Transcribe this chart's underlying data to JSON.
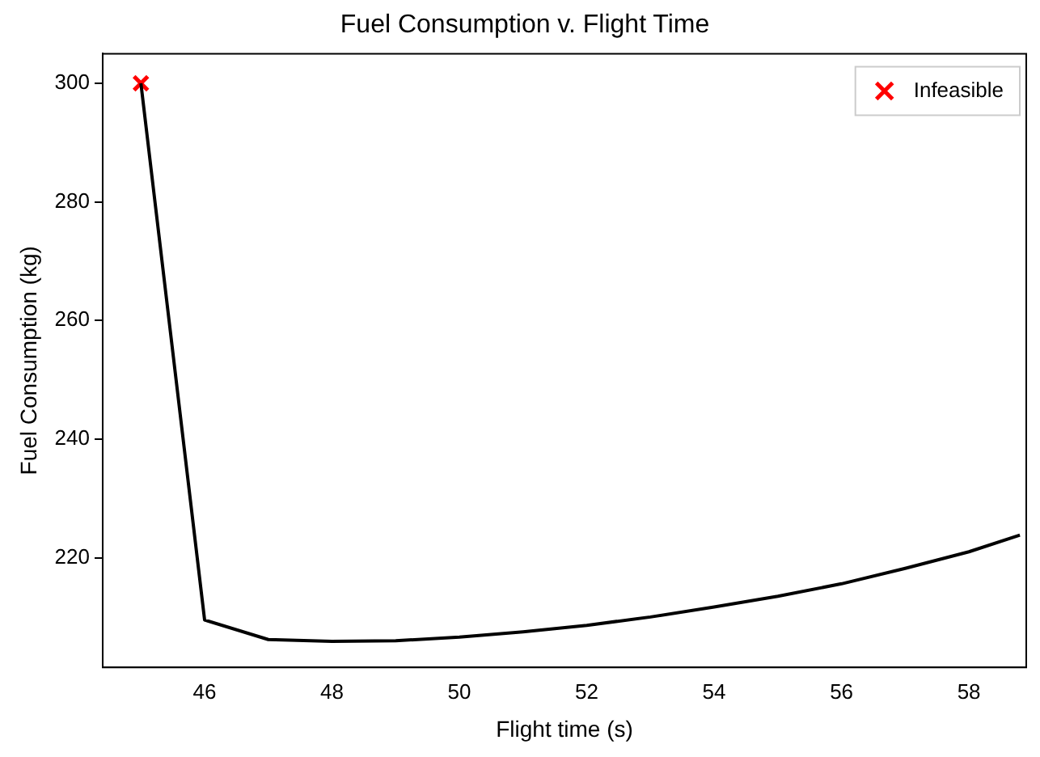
{
  "chart_data": {
    "type": "line",
    "title": "Fuel Consumption v. Flight Time",
    "xlabel": "Flight time (s)",
    "ylabel": "Fuel Consumption (kg)",
    "series": [
      {
        "color": "#000000",
        "x": [
          45,
          46,
          47,
          48,
          49,
          50,
          51,
          52,
          53,
          54,
          55,
          56,
          57,
          58,
          58.8
        ],
        "values": [
          300,
          209.5,
          206.2,
          205.9,
          206,
          206.6,
          207.5,
          208.6,
          210,
          211.7,
          213.5,
          215.6,
          218.2,
          221,
          223.8
        ]
      },
      {
        "type": "scatter",
        "name": "Infeasible",
        "color": "#ff0000",
        "marker": "cross",
        "x": [
          45
        ],
        "values": [
          300
        ]
      }
    ],
    "xlim": [
      44.4,
      58.9
    ],
    "xticks": [
      46,
      48,
      50,
      52,
      54,
      56,
      58
    ],
    "ylim": [
      201.5,
      305
    ],
    "yticks": [
      220,
      240,
      260,
      280,
      300
    ],
    "grid": false,
    "legend": "top right"
  }
}
